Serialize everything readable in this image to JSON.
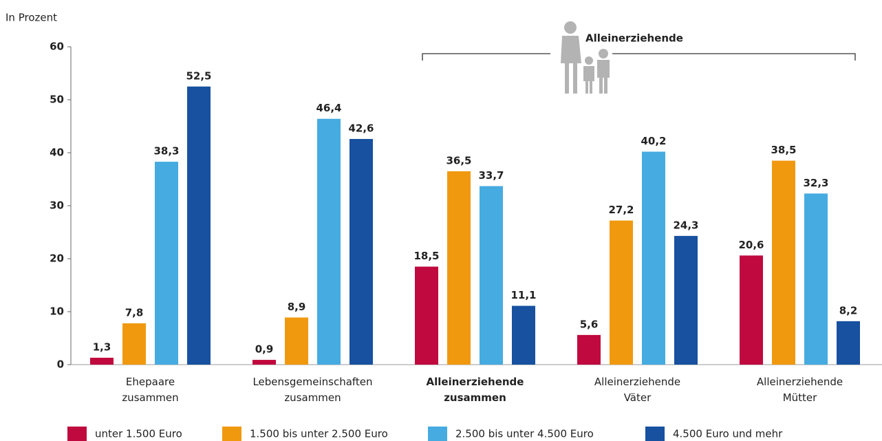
{
  "chart_data": {
    "type": "bar",
    "y_axis_label": "In Prozent",
    "annotation": "Alleinerziehende",
    "categories": [
      "Ehepaare zusammen",
      "Lebensgemeinschaften zusammen",
      "Alleinerziehende zusammen",
      "Alleinerziehende Väter",
      "Alleinerziehende Mütter"
    ],
    "series": [
      {
        "name": "unter 1.500 Euro",
        "color": "#c0093e",
        "values": [
          1.3,
          0.9,
          18.5,
          5.6,
          20.6
        ],
        "value_labels": [
          "1,3",
          "0,9",
          "18,5",
          "5,6",
          "20,6"
        ]
      },
      {
        "name": "1.500 bis unter 2.500 Euro",
        "color": "#f0990f",
        "values": [
          7.8,
          8.9,
          36.5,
          27.2,
          38.5
        ],
        "value_labels": [
          "7,8",
          "8,9",
          "36,5",
          "27,2",
          "38,5"
        ]
      },
      {
        "name": "2.500 bis unter 4.500 Euro",
        "color": "#45abe0",
        "values": [
          38.3,
          46.4,
          33.7,
          40.2,
          32.3
        ],
        "value_labels": [
          "38,3",
          "46,4",
          "33,7",
          "40,2",
          "32,3"
        ]
      },
      {
        "name": "4.500 Euro und mehr",
        "color": "#1751a0",
        "values": [
          52.5,
          42.6,
          11.1,
          24.3,
          8.2
        ],
        "value_labels": [
          "52,5",
          "42,6",
          "11,1",
          "24,3",
          "8,2"
        ]
      }
    ],
    "ylim": [
      0,
      60
    ],
    "yticks": [
      0,
      10,
      20,
      30,
      40,
      50,
      60
    ],
    "grid": false
  }
}
